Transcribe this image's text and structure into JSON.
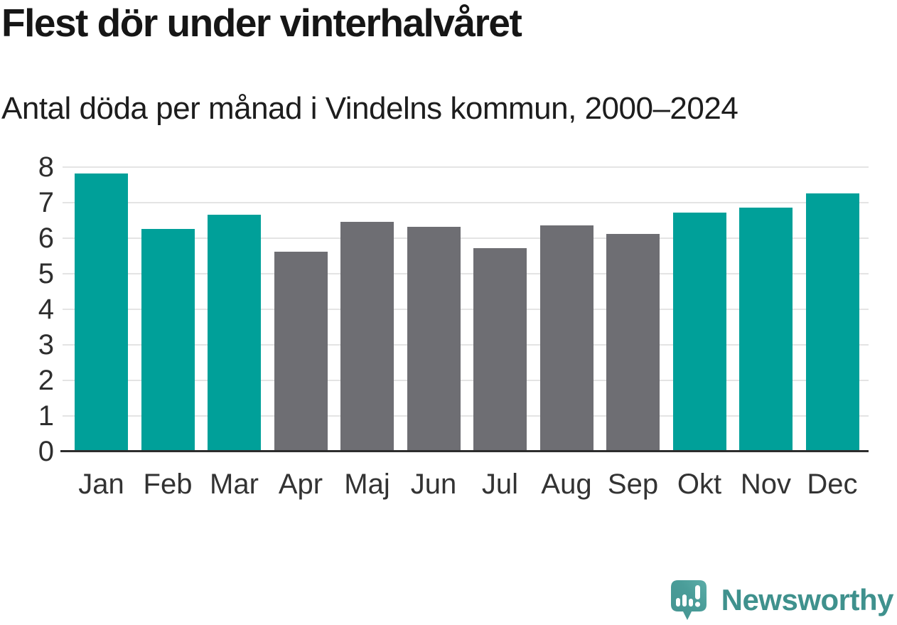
{
  "header": {
    "title": "Flest dör under vinterhalvåret",
    "subtitle": "Antal döda per månad i Vindelns kommun, 2000–2024"
  },
  "chart_data": {
    "type": "bar",
    "title": "Flest dör under vinterhalvåret",
    "subtitle": "Antal döda per månad i Vindelns kommun, 2000–2024",
    "categories": [
      "Jan",
      "Feb",
      "Mar",
      "Apr",
      "Maj",
      "Jun",
      "Jul",
      "Aug",
      "Sep",
      "Okt",
      "Nov",
      "Dec"
    ],
    "values": [
      7.8,
      6.25,
      6.65,
      5.6,
      6.45,
      6.3,
      5.7,
      6.35,
      6.1,
      6.7,
      6.85,
      7.25
    ],
    "color_keys": [
      "winter",
      "winter",
      "winter",
      "summer",
      "summer",
      "summer",
      "summer",
      "summer",
      "summer",
      "winter",
      "winter",
      "winter"
    ],
    "palette": {
      "winter": "#00a099",
      "summer": "#6e6e73"
    },
    "xlabel": "",
    "ylabel": "",
    "ylim": [
      0,
      8
    ],
    "yticks": [
      0,
      1,
      2,
      3,
      4,
      5,
      6,
      7,
      8
    ],
    "grid": true,
    "gridline_color": "#e4e4e4",
    "axis_color": "#2d2d2d",
    "tick_label_color": "#333333",
    "legend": false
  },
  "footer": {
    "brand": "Newsworthy",
    "brand_color": "#3f918d",
    "logo_color": "#4a9d99"
  }
}
